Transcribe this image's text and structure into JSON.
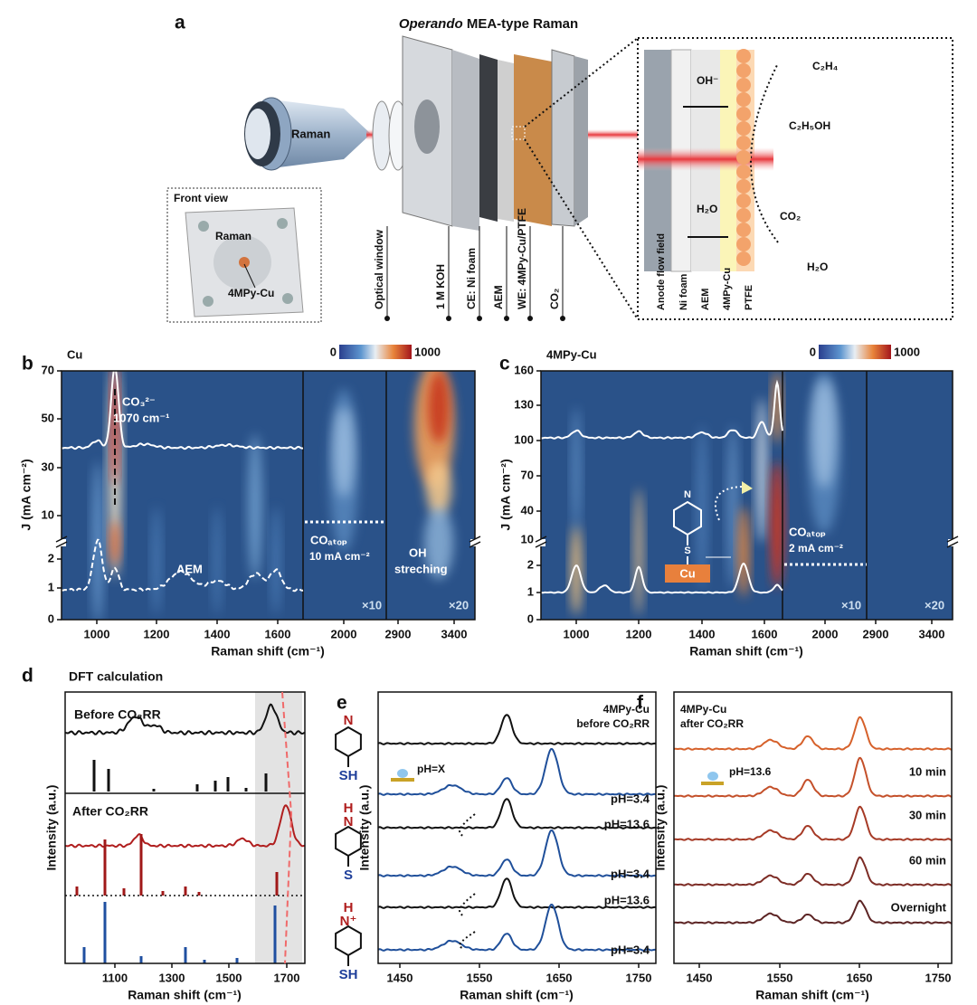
{
  "panel_a": {
    "letter": "a",
    "title_italic": "Operando",
    "title_rest": " MEA-type Raman",
    "raman": "Raman",
    "front_view": "Front view",
    "fv_raman": "Raman",
    "fv_4mpy": "4MPy-Cu",
    "layers": [
      "Optical window",
      "1 M KOH",
      "CE: Ni foam",
      "AEM",
      "WE: 4MPy-Cu/PTFE",
      "CO₂"
    ],
    "inset": {
      "oh": "OH⁻",
      "c2h4": "C₂H₄",
      "c2h5oh": "C₂H₅OH",
      "h2o_left": "H₂O",
      "co2": "CO₂",
      "h2o_right": "H₂O",
      "layers": [
        "Anode flow field",
        "Ni foam",
        "AEM",
        "4MPy-Cu",
        "PTFE"
      ]
    }
  },
  "panel_b": {
    "letter": "b",
    "sample": "Cu",
    "colorbar": [
      "0",
      "1000"
    ],
    "yticks": [
      "0",
      "1",
      "2",
      "10",
      "30",
      "50",
      "70"
    ],
    "xticks": [
      "1000",
      "1200",
      "1400",
      "1600",
      "2000",
      "2900",
      "3400"
    ],
    "ylabel": "J (mA cm⁻²)",
    "xlabel": "Raman shift (cm⁻¹)",
    "ann": {
      "co3": "CO₃²⁻",
      "co3_shift": "1070 cm⁻¹",
      "aem": "AEM",
      "coatop": "COₐₜₒₚ",
      "coatop_j": "10 mA cm⁻²",
      "oh": "OH",
      "oh2": "streching",
      "x10": "×10",
      "x20": "×20"
    }
  },
  "panel_c": {
    "letter": "c",
    "sample": "4MPy-Cu",
    "colorbar": [
      "0",
      "1000"
    ],
    "yticks": [
      "0",
      "1",
      "2",
      "10",
      "40",
      "70",
      "100",
      "130",
      "160"
    ],
    "xticks": [
      "1000",
      "1200",
      "1400",
      "1600",
      "2000",
      "2900",
      "3400"
    ],
    "ylabel": "J (mA cm⁻²)",
    "xlabel": "Raman shift (cm⁻¹)",
    "ann": {
      "n": "N",
      "s": "S",
      "cu": "Cu",
      "coatop": "COₐₜₒₚ",
      "coatop_j": "2 mA cm⁻²",
      "x10": "×10",
      "x20": "×20"
    }
  },
  "panel_d": {
    "letter": "d",
    "title": "DFT calculation",
    "before": "Before CO₂RR",
    "after": "After CO₂RR",
    "ylabel": "Intensity (a.u.)",
    "xlabel": "Raman shift (cm⁻¹)",
    "xticks": [
      "1100",
      "1300",
      "1500",
      "1700"
    ],
    "molecules": [
      {
        "top": "N",
        "bottom": "SH"
      },
      {
        "top": "H",
        "mid": "N",
        "bottom": "S"
      },
      {
        "top": "H",
        "mid": "N⁺",
        "bottom": "SH"
      }
    ]
  },
  "panel_e": {
    "letter": "e",
    "sample": "4MPy-Cu",
    "state": "before CO₂RR",
    "ph": "pH=X",
    "curves": [
      "pH=3.4",
      "pH=13.6",
      "pH=3.4",
      "pH=13.6",
      "pH=3.4"
    ],
    "ylabel": "Intensity (a.u.)",
    "xlabel": "Raman shift (cm⁻¹)",
    "xticks": [
      "1450",
      "1550",
      "1650",
      "1750"
    ]
  },
  "panel_f": {
    "letter": "f",
    "sample": "4MPy-Cu",
    "state": "after CO₂RR",
    "ph": "pH=13.6",
    "curves": [
      "10 min",
      "30 min",
      "60 min",
      "Overnight"
    ],
    "ylabel": "Intensity (a.u.)",
    "xlabel": "Raman shift (cm⁻¹)",
    "xticks": [
      "1450",
      "1550",
      "1650",
      "1750"
    ]
  }
}
